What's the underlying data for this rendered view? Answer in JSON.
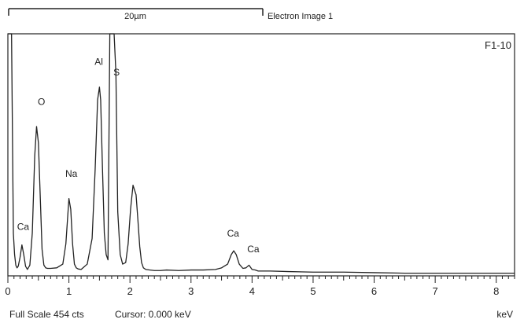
{
  "scale_bar": {
    "length_label": "20µm",
    "caption": "Electron Image 1"
  },
  "chart_data": {
    "type": "line",
    "sample_label": "F1-10",
    "xlim": [
      0,
      8.3
    ],
    "ylim": [
      0,
      454
    ],
    "x_ticks": [
      "0",
      "1",
      "2",
      "3",
      "4",
      "5",
      "6",
      "7",
      "8"
    ],
    "x_unit": "keV",
    "footer": {
      "full_scale": "Full Scale 454 cts",
      "cursor": "Cursor: 0.000 keV"
    },
    "series": [
      {
        "x": [
          0.0,
          0.03,
          0.06,
          0.09,
          0.11,
          0.13,
          0.15,
          0.17,
          0.2,
          0.23,
          0.26,
          0.29,
          0.32,
          0.36,
          0.4,
          0.44,
          0.47,
          0.5,
          0.53,
          0.56,
          0.59,
          0.62,
          0.65,
          0.7,
          0.8,
          0.9,
          0.95,
          1.0,
          1.03,
          1.06,
          1.09,
          1.12,
          1.15,
          1.2,
          1.3,
          1.38,
          1.43,
          1.47,
          1.5,
          1.52,
          1.55,
          1.58,
          1.61,
          1.64,
          1.67,
          1.69,
          1.72,
          1.74,
          1.77,
          1.8,
          1.84,
          1.88,
          1.93,
          1.97,
          2.01,
          2.05,
          2.1,
          2.13,
          2.16,
          2.19,
          2.22,
          2.26,
          2.32,
          2.4,
          2.5,
          2.6,
          2.8,
          3.0,
          3.2,
          3.4,
          3.5,
          3.6,
          3.66,
          3.7,
          3.74,
          3.79,
          3.85,
          3.9,
          3.95,
          4.0,
          4.05,
          4.1,
          4.3,
          4.6,
          5.0,
          5.5,
          6.0,
          6.5,
          7.0,
          7.5,
          8.0,
          8.3
        ],
        "y": [
          454,
          454,
          454,
          80,
          40,
          20,
          15,
          18,
          35,
          58,
          40,
          18,
          12,
          20,
          80,
          225,
          280,
          250,
          150,
          50,
          20,
          15,
          14,
          14,
          15,
          22,
          60,
          145,
          125,
          60,
          22,
          15,
          13,
          12,
          22,
          70,
          200,
          330,
          354,
          330,
          200,
          80,
          40,
          30,
          454,
          454,
          454,
          454,
          380,
          120,
          40,
          22,
          25,
          60,
          125,
          170,
          152,
          105,
          55,
          25,
          15,
          12,
          11,
          10,
          10,
          11,
          10,
          11,
          11,
          12,
          15,
          22,
          40,
          47,
          40,
          22,
          14,
          15,
          20,
          12,
          11,
          9,
          9,
          8,
          7,
          7,
          6,
          5,
          5,
          5,
          5,
          5
        ]
      }
    ],
    "peak_labels": [
      {
        "text": "Al",
        "x": 1.49,
        "y": 390
      },
      {
        "text": "S",
        "x": 1.78,
        "y": 370
      },
      {
        "text": "O",
        "x": 0.55,
        "y": 315
      },
      {
        "text": "Na",
        "x": 1.04,
        "y": 180
      },
      {
        "text": "Ca",
        "x": 0.25,
        "y": 80
      },
      {
        "text": "Ca",
        "x": 3.69,
        "y": 68
      },
      {
        "text": "Ca",
        "x": 4.02,
        "y": 38
      }
    ]
  }
}
